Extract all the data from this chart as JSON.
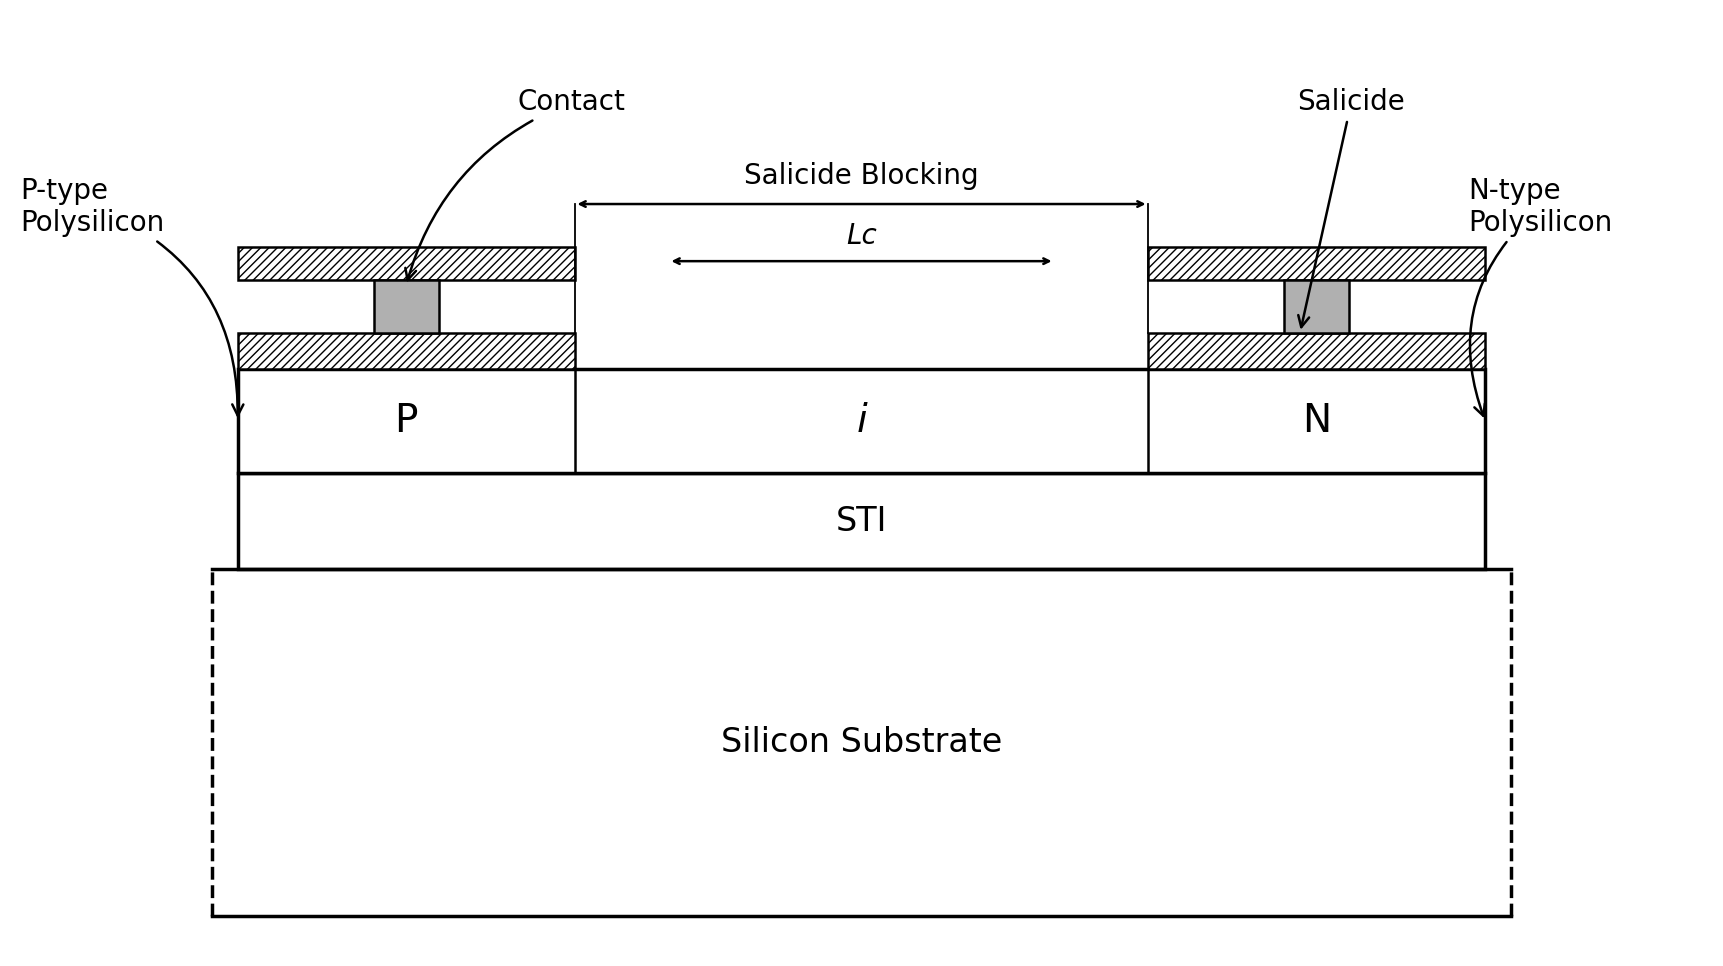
{
  "bg_color": "#ffffff",
  "line_color": "#000000",
  "fig_width": 17.23,
  "fig_height": 9.66,
  "labels": {
    "P": "P",
    "i": "i",
    "N": "N",
    "STI": "STI",
    "Silicon_Substrate": "Silicon Substrate",
    "Salicide_Blocking": "Salicide Blocking",
    "Lc": "Lc",
    "Contact": "Contact",
    "Salicide": "Salicide",
    "P_type_Poly": "P-type\nPolysilicon",
    "N_type_Poly": "N-type\nPolysilicon"
  },
  "font_size_large": 24,
  "font_size_medium": 20,
  "font_size_small": 19,
  "font_size_label": 28,
  "font_size_anno": 20
}
